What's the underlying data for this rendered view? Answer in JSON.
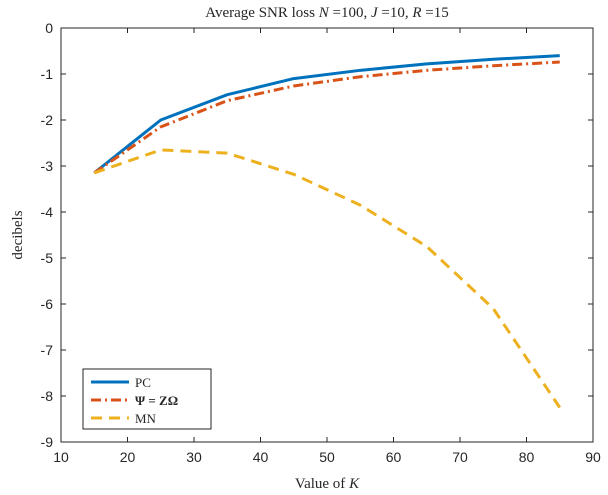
{
  "chart_data": {
    "type": "line",
    "title": "Average SNR loss N =100, J =10, R =15",
    "xlabel": "Value of K",
    "ylabel": "decibels",
    "xlim": [
      10,
      90
    ],
    "ylim": [
      -9,
      0
    ],
    "xticks": [
      "10",
      "20",
      "30",
      "40",
      "50",
      "60",
      "70",
      "80",
      "90"
    ],
    "yticks": [
      "0",
      "-1",
      "-2",
      "-3",
      "-4",
      "-5",
      "-6",
      "-7",
      "-8",
      "-9"
    ],
    "grid": false,
    "legend_position": "bottom-left",
    "x": [
      15,
      25,
      35,
      45,
      55,
      65,
      75,
      85
    ],
    "series": [
      {
        "name": "PC",
        "color": "#0072BD",
        "style": "solid",
        "values": [
          -3.15,
          -2.0,
          -1.45,
          -1.1,
          -0.92,
          -0.78,
          -0.68,
          -0.6
        ]
      },
      {
        "name": "Ψ = ZΩ",
        "color": "#D95319",
        "style": "dash-dot",
        "values": [
          -3.15,
          -2.15,
          -1.58,
          -1.26,
          -1.06,
          -0.92,
          -0.82,
          -0.74
        ]
      },
      {
        "name": "MN",
        "color": "#EDB120",
        "style": "dashed",
        "values": [
          -3.15,
          -2.65,
          -2.72,
          -3.18,
          -3.85,
          -4.75,
          -6.1,
          -8.25
        ]
      }
    ]
  }
}
